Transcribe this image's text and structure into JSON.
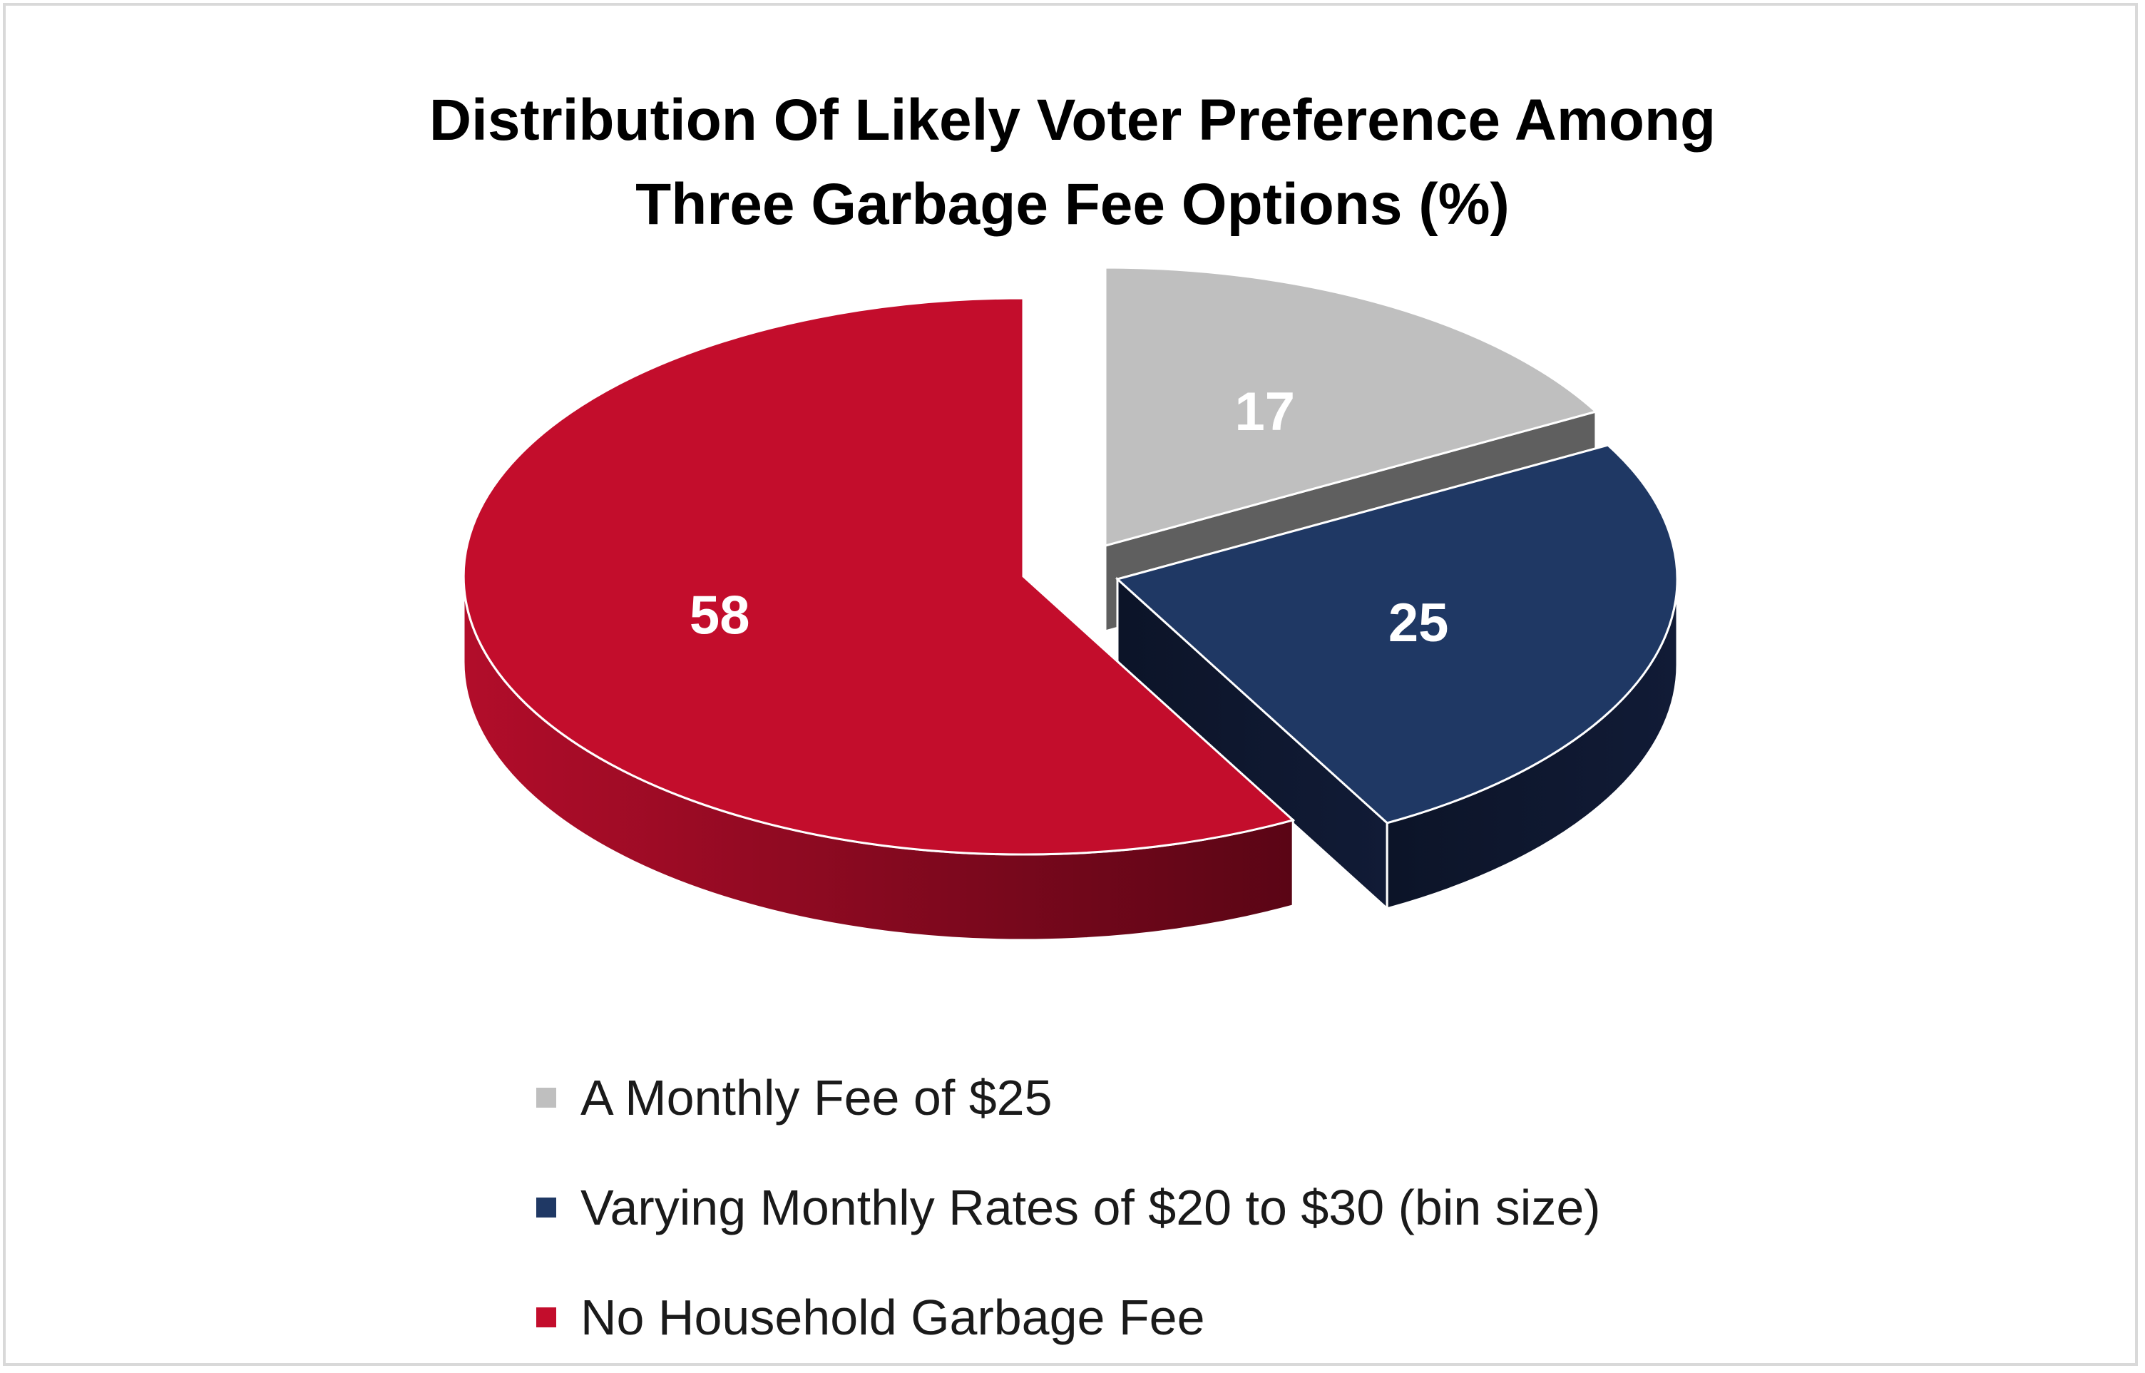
{
  "chart_data": {
    "type": "pie",
    "title_lines": [
      "Distribution Of Likely Voter Preference Among",
      "Three Garbage Fee Options (%)"
    ],
    "slices": [
      {
        "name": "A Monthly Fee of $25",
        "value": 17,
        "label": "17",
        "color": "#bfbfbf",
        "side_color": "#5f5f5f"
      },
      {
        "name": "Varying Monthly Rates of $20 to $30 (bin size)",
        "value": 25,
        "label": "25",
        "color": "#1f3864",
        "side_color": "#0d172b"
      },
      {
        "name": "No Household Garbage Fee",
        "value": 58,
        "label": "58",
        "color": "#c30d2c",
        "side_color": "#8c0b22"
      }
    ],
    "three_d": true,
    "exploded": true,
    "legend_position": "bottom"
  }
}
